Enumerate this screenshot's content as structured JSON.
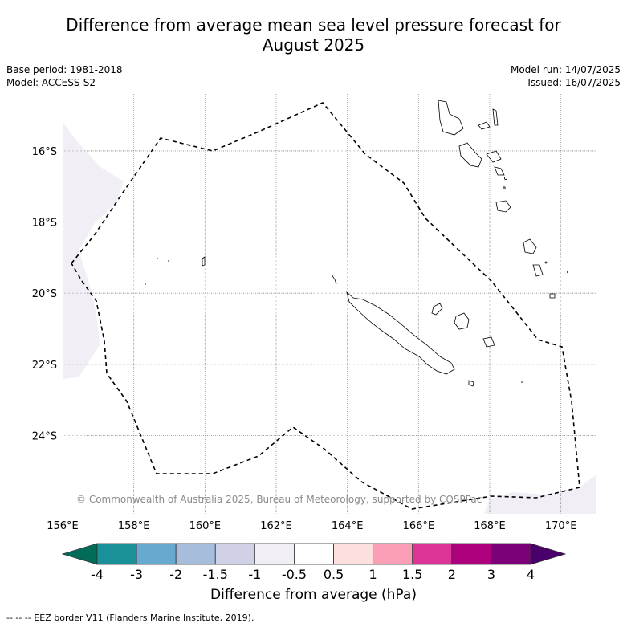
{
  "title_line1": "Difference from average mean sea level pressure forecast for",
  "title_line2": "August 2025",
  "base_period": "Base period: 1981-2018",
  "model": "Model: ACCESS-S2",
  "model_run": "Model run: 14/07/2025",
  "issued": "Issued: 16/07/2025",
  "map": {
    "lon_range": [
      156,
      171
    ],
    "lat_range": [
      -26.2,
      -14.4
    ],
    "lon_ticks": [
      "156°E",
      "158°E",
      "160°E",
      "162°E",
      "164°E",
      "166°E",
      "168°E",
      "170°E"
    ],
    "lat_ticks": [
      "16°S",
      "18°S",
      "20°S",
      "22°S",
      "24°S"
    ],
    "grid": true
  },
  "copyright": "© Commonwealth of Australia 2025, Bureau of Meteorology, supported by COSPPac",
  "colorbar": {
    "label": "Difference from average (hPa)",
    "ticks": [
      "-4",
      "-3",
      "-2",
      "-1.5",
      "-1",
      "-0.5",
      "0.5",
      "1",
      "1.5",
      "2",
      "3",
      "4"
    ],
    "colors": [
      "#1a9099",
      "#67a9cf",
      "#a6bddb",
      "#d0d1e6",
      "#f1eef6",
      "#ffffff",
      "#fde0dd",
      "#fa9fb5",
      "#dd3497",
      "#ae017e",
      "#7a0177"
    ],
    "under_color": "#016c59",
    "over_color": "#49006a"
  },
  "footnote": "--  --  -- EEZ border V11 (Flanders Marine Institute, 2019)."
}
